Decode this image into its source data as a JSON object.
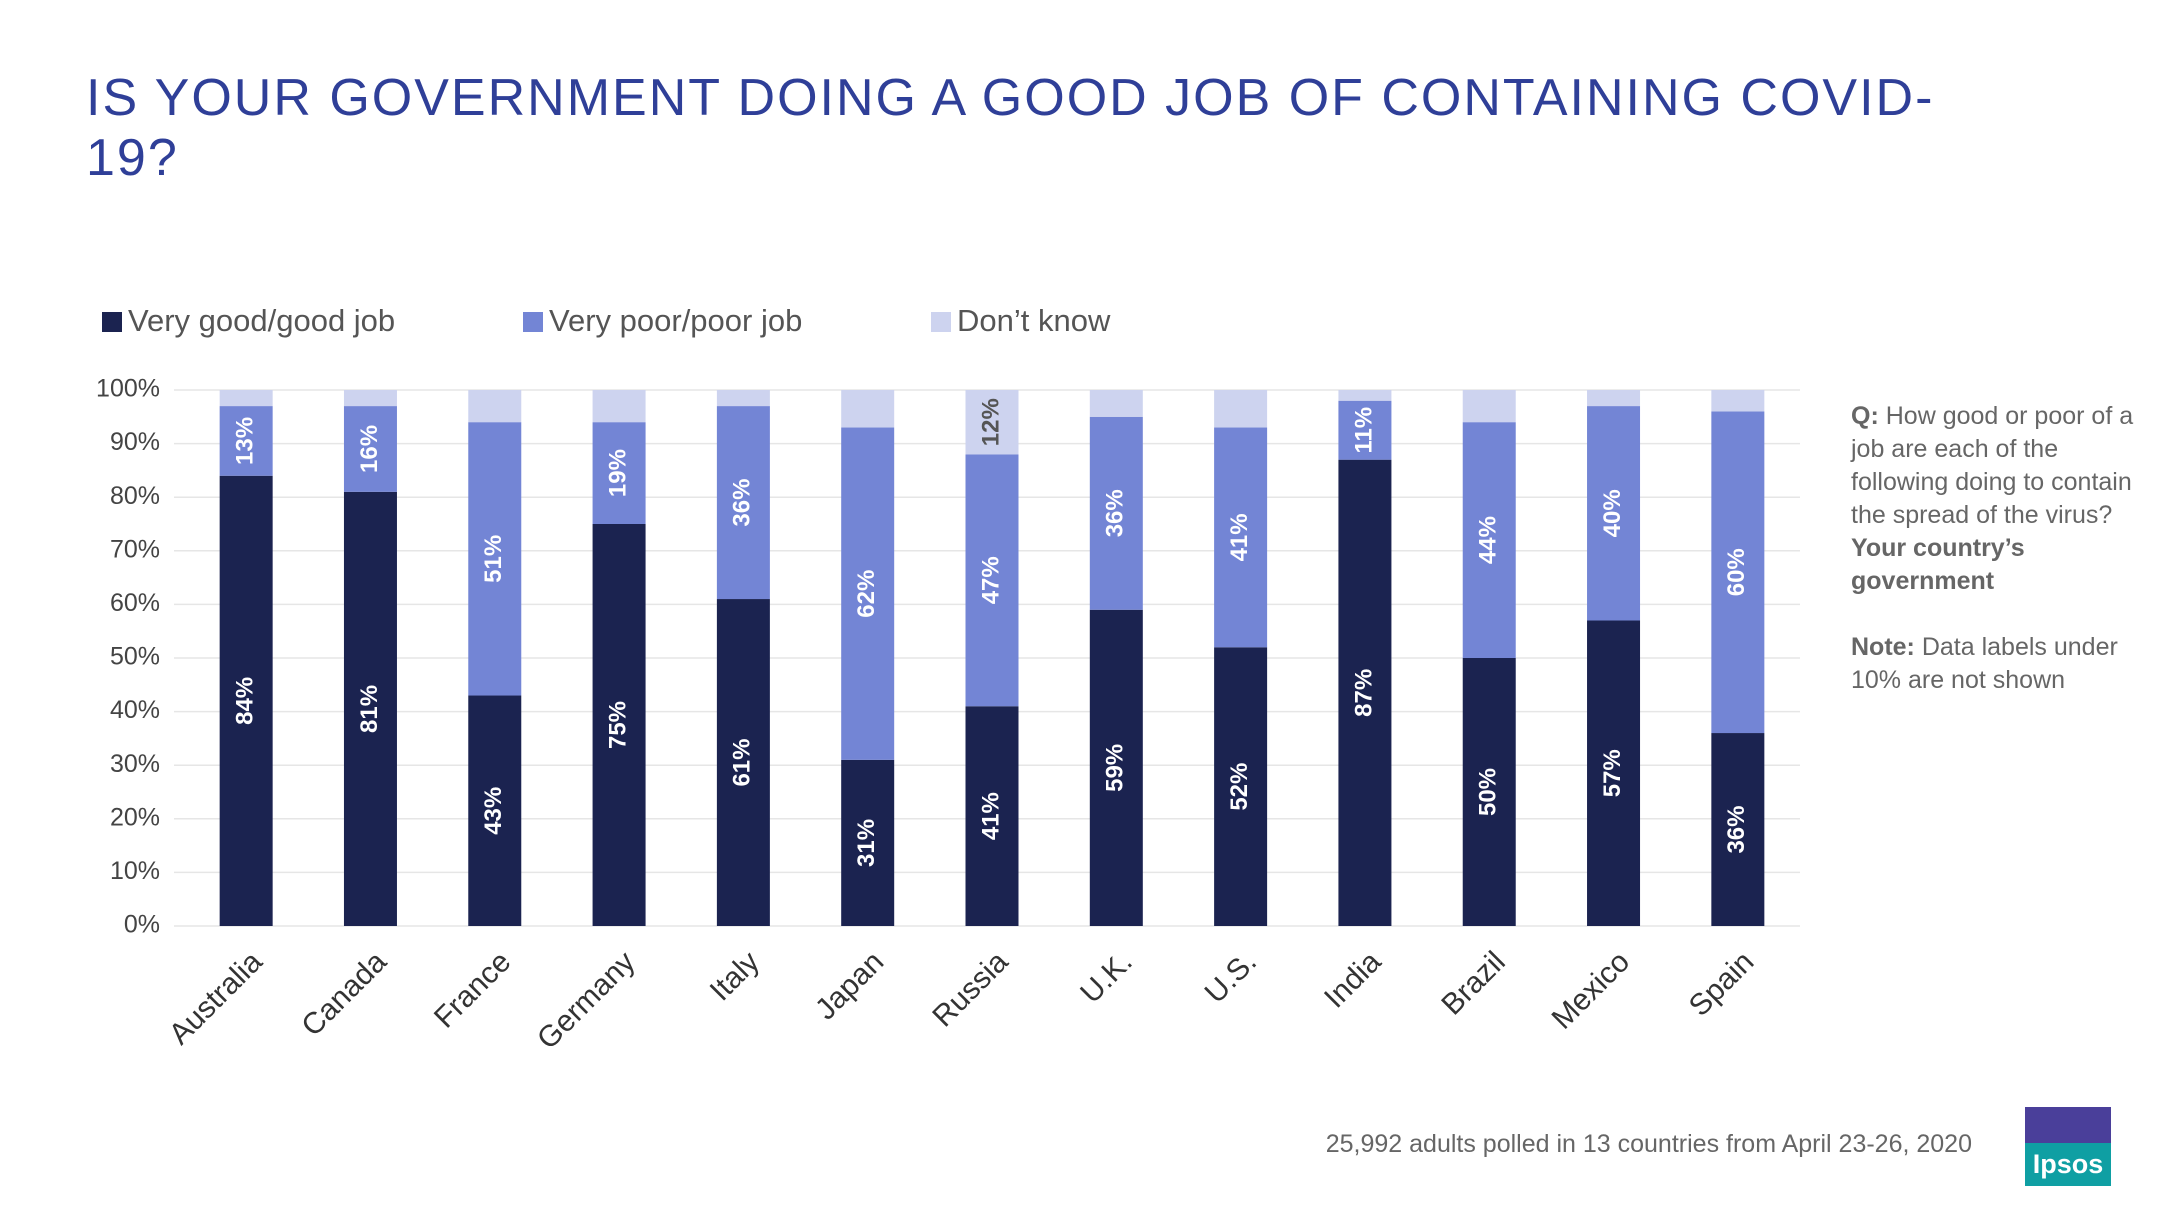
{
  "chart_data": {
    "type": "stacked_bar",
    "title": "IS YOUR GOVERNMENT DOING A GOOD JOB OF CONTAINING COVID-19?",
    "categories": [
      "Australia",
      "Canada",
      "France",
      "Germany",
      "Italy",
      "Japan",
      "Russia",
      "U.K.",
      "U.S.",
      "India",
      "Brazil",
      "Mexico",
      "Spain"
    ],
    "series": [
      {
        "name": "Very good/good job",
        "color": "#1b2350",
        "label_color": "#ffffff",
        "values": [
          84,
          81,
          43,
          75,
          61,
          31,
          41,
          59,
          52,
          87,
          50,
          57,
          36
        ],
        "value_labels": [
          "84%",
          "81%",
          "43%",
          "75%",
          "61%",
          "31%",
          "41%",
          "59%",
          "52%",
          "87%",
          "50%",
          "57%",
          "36%"
        ]
      },
      {
        "name": "Very poor/poor job",
        "color": "#7385d5",
        "label_color": "#ffffff",
        "values": [
          13,
          16,
          51,
          19,
          36,
          62,
          47,
          36,
          41,
          11,
          44,
          40,
          60
        ],
        "value_labels": [
          "13%",
          "16%",
          "51%",
          "19%",
          "36%",
          "62%",
          "47%",
          "36%",
          "41%",
          "11%",
          "44%",
          "40%",
          "60%"
        ]
      },
      {
        "name": "Don’t know",
        "color": "#cdd3ef",
        "label_color": "#555555",
        "values": [
          3,
          3,
          6,
          6,
          3,
          7,
          12,
          5,
          7,
          2,
          6,
          3,
          4
        ],
        "value_labels": [
          null,
          null,
          null,
          null,
          null,
          null,
          "12%",
          null,
          null,
          null,
          null,
          null,
          null
        ]
      }
    ],
    "ylim": [
      0,
      100
    ],
    "yticks": [
      {
        "value": 0,
        "label": "0%"
      },
      {
        "value": 10,
        "label": "10%"
      },
      {
        "value": 20,
        "label": "20%"
      },
      {
        "value": 30,
        "label": "30%"
      },
      {
        "value": 40,
        "label": "40%"
      },
      {
        "value": 50,
        "label": "50%"
      },
      {
        "value": 60,
        "label": "60%"
      },
      {
        "value": 70,
        "label": "70%"
      },
      {
        "value": 80,
        "label": "80%"
      },
      {
        "value": 90,
        "label": "90%"
      },
      {
        "value": 100,
        "label": "100%"
      }
    ],
    "grid": true,
    "legend": "top",
    "question": {
      "label": "Q:",
      "text": "How good or poor of a job are each of the following doing to contain the spread of the virus?",
      "subject": "Your country’s government"
    },
    "note": {
      "label": "Note:",
      "text": "Data labels under 10% are not shown"
    },
    "source": "25,992 adults polled in 13 countries from April 23-26, 2020",
    "logo": "Ipsos"
  }
}
